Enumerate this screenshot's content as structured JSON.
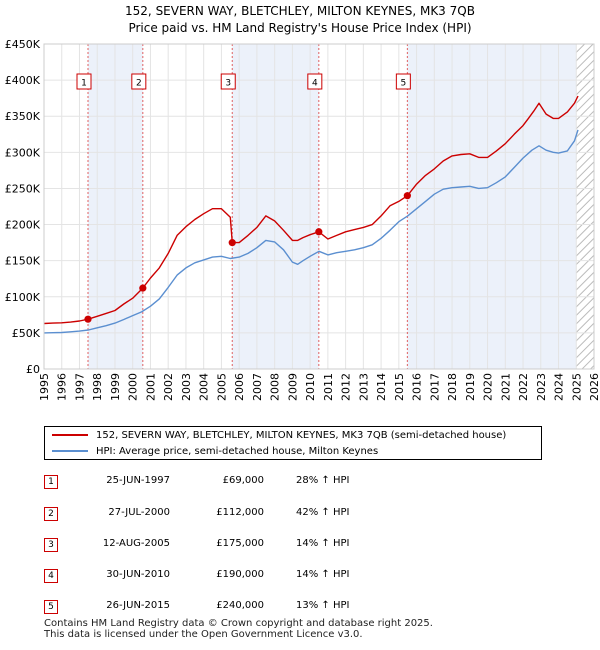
{
  "title_line1": "152, SEVERN WAY, BLETCHLEY, MILTON KEYNES, MK3 7QB",
  "title_line2": "Price paid vs. HM Land Registry's House Price Index (HPI)",
  "colors": {
    "property": "#cc0000",
    "hpi": "#5b8fd0",
    "marker_border": "#cc0000",
    "shade": "#dde6f5",
    "grid": "#e4e4e4"
  },
  "chart_data": {
    "type": "line",
    "title": "152, SEVERN WAY, BLETCHLEY, MILTON KEYNES, MK3 7QB — Price paid vs. HM Land Registry's House Price Index (HPI)",
    "xlabel": "",
    "ylabel": "",
    "xlim": [
      1995,
      2026
    ],
    "ylim": [
      0,
      450000
    ],
    "x_ticks": [
      1995,
      1996,
      1997,
      1998,
      1999,
      2000,
      2001,
      2002,
      2003,
      2004,
      2005,
      2006,
      2007,
      2008,
      2009,
      2010,
      2011,
      2012,
      2013,
      2014,
      2015,
      2016,
      2017,
      2018,
      2019,
      2020,
      2021,
      2022,
      2023,
      2024,
      2025,
      2026
    ],
    "y_ticks": [
      0,
      50000,
      100000,
      150000,
      200000,
      250000,
      300000,
      350000,
      400000,
      450000
    ],
    "y_tick_labels": [
      "£0",
      "£50K",
      "£100K",
      "£150K",
      "£200K",
      "£250K",
      "£300K",
      "£350K",
      "£400K",
      "£450K"
    ],
    "grid": true,
    "shaded_periods": [
      [
        1997.48,
        2000.57
      ],
      [
        2005.61,
        2010.49
      ],
      [
        2015.48,
        2025.0
      ]
    ],
    "hatched_from": 2025.0,
    "series": [
      {
        "name": "152, SEVERN WAY, BLETCHLEY, MILTON KEYNES, MK3 7QB (semi-detached house)",
        "color": "#cc0000",
        "x": [
          1995.0,
          1995.5,
          1996.0,
          1996.5,
          1997.0,
          1997.48,
          1998.0,
          1998.5,
          1999.0,
          1999.5,
          2000.0,
          2000.57,
          2001.0,
          2001.5,
          2002.0,
          2002.5,
          2003.0,
          2003.5,
          2004.0,
          2004.5,
          2005.0,
          2005.5,
          2005.6,
          2005.61,
          2006.0,
          2006.5,
          2007.0,
          2007.5,
          2008.0,
          2008.5,
          2009.0,
          2009.3,
          2009.6,
          2010.0,
          2010.49,
          2011.0,
          2011.5,
          2012.0,
          2012.5,
          2013.0,
          2013.5,
          2014.0,
          2014.5,
          2015.0,
          2015.48,
          2016.0,
          2016.5,
          2017.0,
          2017.5,
          2018.0,
          2018.5,
          2019.0,
          2019.5,
          2020.0,
          2020.5,
          2021.0,
          2021.5,
          2022.0,
          2022.3,
          2022.6,
          2022.9,
          2023.3,
          2023.7,
          2024.0,
          2024.5,
          2024.9,
          2025.1
        ],
        "values": [
          63000,
          63500,
          64000,
          65000,
          66500,
          69000,
          73000,
          77000,
          81000,
          90000,
          98000,
          112000,
          126000,
          140000,
          160000,
          185000,
          197000,
          207000,
          215000,
          222000,
          222000,
          210000,
          178000,
          175000,
          175000,
          185000,
          196000,
          212000,
          205000,
          192000,
          178000,
          178000,
          182000,
          186000,
          190000,
          180000,
          185000,
          190000,
          193000,
          196000,
          200000,
          212000,
          226000,
          232000,
          240000,
          256000,
          268000,
          277000,
          288000,
          295000,
          297000,
          298000,
          293000,
          293000,
          302000,
          312000,
          325000,
          337000,
          347000,
          357000,
          368000,
          353000,
          347000,
          347000,
          356000,
          368000,
          378000
        ]
      },
      {
        "name": "HPI: Average price, semi-detached house, Milton Keynes",
        "color": "#5b8fd0",
        "x": [
          1995.0,
          1995.5,
          1996.0,
          1996.5,
          1997.0,
          1997.5,
          1998.0,
          1998.5,
          1999.0,
          1999.5,
          2000.0,
          2000.5,
          2001.0,
          2001.5,
          2002.0,
          2002.5,
          2003.0,
          2003.5,
          2004.0,
          2004.5,
          2005.0,
          2005.5,
          2006.0,
          2006.5,
          2007.0,
          2007.5,
          2008.0,
          2008.5,
          2009.0,
          2009.3,
          2009.6,
          2010.0,
          2010.5,
          2011.0,
          2011.5,
          2012.0,
          2012.5,
          2013.0,
          2013.5,
          2014.0,
          2014.5,
          2015.0,
          2015.5,
          2016.0,
          2016.5,
          2017.0,
          2017.5,
          2018.0,
          2018.5,
          2019.0,
          2019.5,
          2020.0,
          2020.5,
          2021.0,
          2021.5,
          2022.0,
          2022.5,
          2022.9,
          2023.3,
          2023.7,
          2024.0,
          2024.5,
          2024.9,
          2025.1
        ],
        "values": [
          50000,
          50300,
          50600,
          51500,
          52500,
          54000,
          57000,
          60000,
          63500,
          68500,
          74000,
          79000,
          87000,
          97000,
          113000,
          130000,
          140000,
          147000,
          151000,
          155000,
          156000,
          153000,
          155000,
          160000,
          168000,
          178000,
          176000,
          165000,
          148000,
          145000,
          150000,
          156000,
          163000,
          158000,
          161000,
          163000,
          165000,
          168000,
          172000,
          181000,
          192000,
          204000,
          212000,
          222000,
          232000,
          242000,
          249000,
          251000,
          252000,
          253000,
          250000,
          251000,
          258000,
          266000,
          279000,
          292000,
          303000,
          309000,
          303000,
          300000,
          299000,
          302000,
          316000,
          331000
        ]
      }
    ],
    "sales": [
      {
        "num": "1",
        "x": 1997.48,
        "value": 69000
      },
      {
        "num": "2",
        "x": 2000.57,
        "value": 112000
      },
      {
        "num": "3",
        "x": 2005.61,
        "value": 175000
      },
      {
        "num": "4",
        "x": 2010.49,
        "value": 190000
      },
      {
        "num": "5",
        "x": 2015.48,
        "value": 240000
      }
    ]
  },
  "legend": {
    "property_label": "152, SEVERN WAY, BLETCHLEY, MILTON KEYNES, MK3 7QB (semi-detached house)",
    "hpi_label": "HPI: Average price, semi-detached house, Milton Keynes"
  },
  "sales_table": [
    {
      "num": "1",
      "date": "25-JUN-1997",
      "price": "£69,000",
      "hpi": "28% ↑ HPI"
    },
    {
      "num": "2",
      "date": "27-JUL-2000",
      "price": "£112,000",
      "hpi": "42% ↑ HPI"
    },
    {
      "num": "3",
      "date": "12-AUG-2005",
      "price": "£175,000",
      "hpi": "14% ↑ HPI"
    },
    {
      "num": "4",
      "date": "30-JUN-2010",
      "price": "£190,000",
      "hpi": "14% ↑ HPI"
    },
    {
      "num": "5",
      "date": "26-JUN-2015",
      "price": "£240,000",
      "hpi": "13% ↑ HPI"
    }
  ],
  "footer": {
    "line1": "Contains HM Land Registry data © Crown copyright and database right 2025.",
    "line2": "This data is licensed under the Open Government Licence v3.0."
  }
}
